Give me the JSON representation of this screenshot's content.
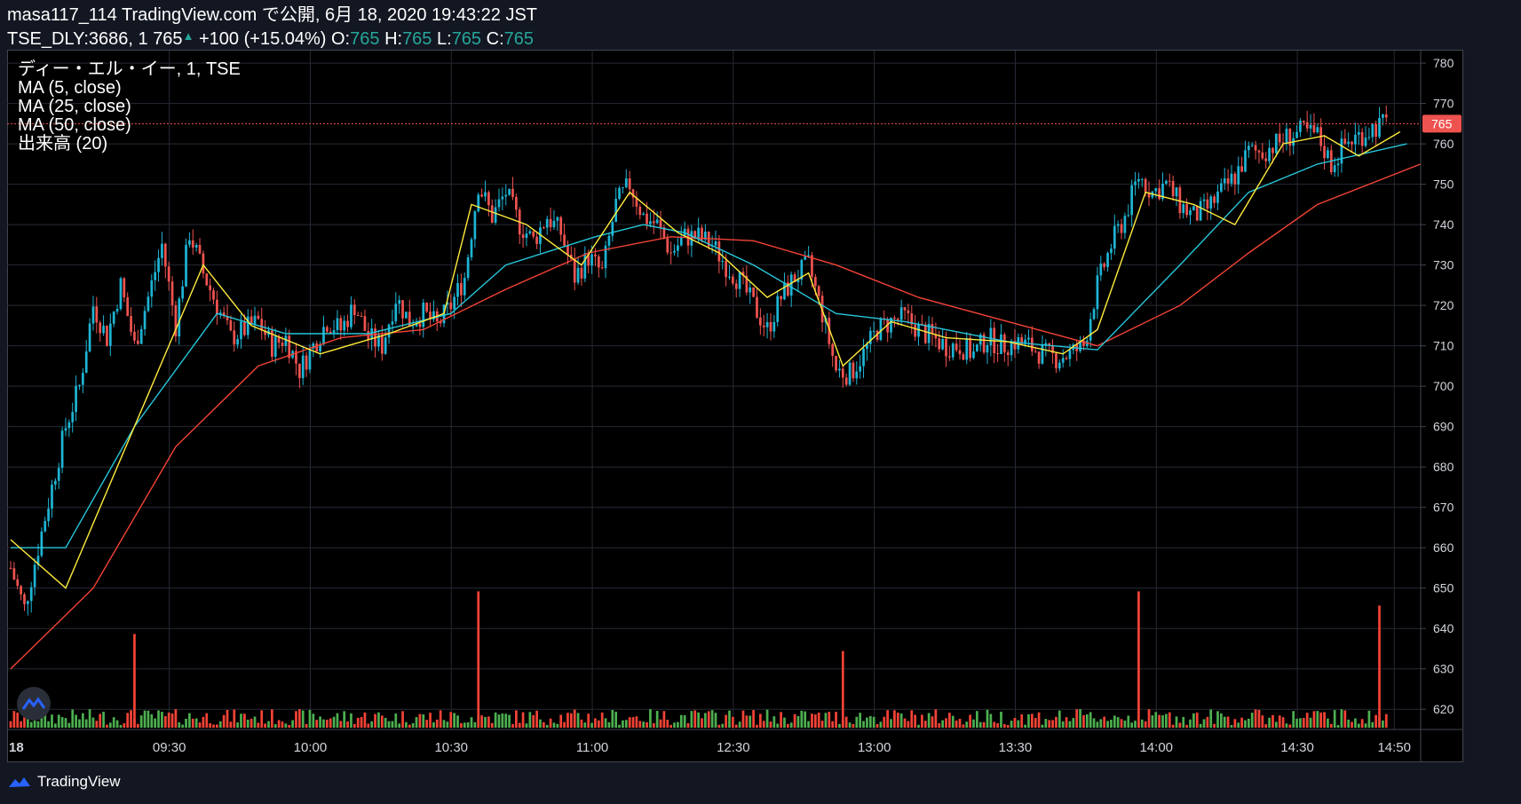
{
  "header": {
    "line1": "masa117_114 TradingView.com で公開, 6月 18, 2020 19:43:22 JST",
    "symbol": "TSE_DLY:3686, 1",
    "price": "765",
    "change": "+100 (+15.04%)",
    "o_label": "O:",
    "o_val": "765",
    "h_label": "H:",
    "h_val": "765",
    "l_label": "L:",
    "l_val": "765",
    "c_label": "C:",
    "c_val": "765"
  },
  "legend": {
    "symbol_line": "ディー・エル・イー, 1, TSE",
    "ma5": "MA (5, close)",
    "ma25": "MA (25, close)",
    "ma50": "MA (50, close)",
    "volume": "出来高 (20)"
  },
  "footer": {
    "brand": "TradingView"
  },
  "colors": {
    "up": "#26a69a",
    "up_candle": "#1eb4d4",
    "down": "#ef5350",
    "ma5": "#ffeb3b",
    "ma25": "#26c6da",
    "ma50": "#f44336",
    "vol_up": "#4caf50",
    "vol_down": "#f44336",
    "price_tag": "#ef5350"
  },
  "chart_data": {
    "type": "candlestick",
    "title": "ディー・エル・イー, 1, TSE",
    "ylim": [
      615,
      782
    ],
    "y_ticks": [
      620,
      630,
      640,
      650,
      660,
      670,
      680,
      690,
      700,
      710,
      720,
      730,
      740,
      750,
      760,
      770,
      780
    ],
    "x_ticks": [
      "18",
      "09:30",
      "10:00",
      "10:30",
      "11:00",
      "12:30",
      "13:00",
      "13:30",
      "14:00",
      "14:30",
      "14:50"
    ],
    "last_price": 765,
    "price_path": [
      [
        0,
        655
      ],
      [
        2,
        645
      ],
      [
        4,
        660
      ],
      [
        6,
        675
      ],
      [
        8,
        690
      ],
      [
        10,
        700
      ],
      [
        12,
        720
      ],
      [
        14,
        712
      ],
      [
        16,
        725
      ],
      [
        18,
        710
      ],
      [
        20,
        722
      ],
      [
        22,
        735
      ],
      [
        24,
        715
      ],
      [
        26,
        738
      ],
      [
        28,
        728
      ],
      [
        30,
        720
      ],
      [
        32,
        712
      ],
      [
        34,
        714
      ],
      [
        36,
        716
      ],
      [
        38,
        710
      ],
      [
        40,
        712
      ],
      [
        42,
        704
      ],
      [
        44,
        710
      ],
      [
        46,
        716
      ],
      [
        48,
        714
      ],
      [
        50,
        720
      ],
      [
        52,
        712
      ],
      [
        54,
        710
      ],
      [
        56,
        722
      ],
      [
        58,
        716
      ],
      [
        60,
        718
      ],
      [
        62,
        715
      ],
      [
        64,
        720
      ],
      [
        66,
        727
      ],
      [
        68,
        750
      ],
      [
        70,
        742
      ],
      [
        72,
        748
      ],
      [
        74,
        740
      ],
      [
        76,
        736
      ],
      [
        78,
        742
      ],
      [
        80,
        738
      ],
      [
        82,
        727
      ],
      [
        84,
        732
      ],
      [
        86,
        728
      ],
      [
        88,
        745
      ],
      [
        90,
        750
      ],
      [
        92,
        742
      ],
      [
        94,
        740
      ],
      [
        96,
        733
      ],
      [
        98,
        737
      ],
      [
        100,
        737
      ],
      [
        102,
        735
      ],
      [
        104,
        730
      ],
      [
        106,
        726
      ],
      [
        108,
        720
      ],
      [
        110,
        714
      ],
      [
        112,
        722
      ],
      [
        114,
        727
      ],
      [
        116,
        730
      ],
      [
        118,
        718
      ],
      [
        120,
        704
      ],
      [
        122,
        703
      ],
      [
        124,
        708
      ],
      [
        126,
        714
      ],
      [
        128,
        716
      ],
      [
        130,
        717
      ],
      [
        132,
        714
      ],
      [
        134,
        712
      ],
      [
        136,
        710
      ],
      [
        138,
        710
      ],
      [
        140,
        708
      ],
      [
        142,
        712
      ],
      [
        144,
        710
      ],
      [
        146,
        711
      ],
      [
        148,
        710
      ],
      [
        150,
        708
      ],
      [
        152,
        707
      ],
      [
        154,
        708
      ],
      [
        156,
        710
      ],
      [
        158,
        725
      ],
      [
        160,
        735
      ],
      [
        162,
        742
      ],
      [
        164,
        752
      ],
      [
        166,
        748
      ],
      [
        168,
        750
      ],
      [
        170,
        745
      ],
      [
        172,
        742
      ],
      [
        174,
        744
      ],
      [
        176,
        748
      ],
      [
        178,
        752
      ],
      [
        180,
        758
      ],
      [
        182,
        758
      ],
      [
        184,
        760
      ],
      [
        186,
        762
      ],
      [
        188,
        763
      ],
      [
        190,
        762
      ],
      [
        192,
        755
      ],
      [
        194,
        760
      ],
      [
        196,
        762
      ],
      [
        198,
        764
      ],
      [
        200,
        765
      ]
    ],
    "ma5": [
      [
        0,
        662
      ],
      [
        8,
        650
      ],
      [
        18,
        690
      ],
      [
        28,
        730
      ],
      [
        35,
        715
      ],
      [
        45,
        708
      ],
      [
        55,
        713
      ],
      [
        63,
        718
      ],
      [
        67,
        745
      ],
      [
        75,
        740
      ],
      [
        83,
        730
      ],
      [
        90,
        748
      ],
      [
        97,
        738
      ],
      [
        103,
        733
      ],
      [
        110,
        722
      ],
      [
        116,
        728
      ],
      [
        121,
        705
      ],
      [
        128,
        716
      ],
      [
        136,
        712
      ],
      [
        145,
        711
      ],
      [
        153,
        708
      ],
      [
        158,
        714
      ],
      [
        165,
        748
      ],
      [
        172,
        745
      ],
      [
        178,
        740
      ],
      [
        185,
        760
      ],
      [
        191,
        762
      ],
      [
        196,
        757
      ],
      [
        202,
        763
      ]
    ],
    "ma25": [
      [
        0,
        660
      ],
      [
        8,
        660
      ],
      [
        18,
        690
      ],
      [
        30,
        718
      ],
      [
        40,
        713
      ],
      [
        52,
        713
      ],
      [
        64,
        718
      ],
      [
        72,
        730
      ],
      [
        85,
        737
      ],
      [
        92,
        740
      ],
      [
        98,
        738
      ],
      [
        108,
        730
      ],
      [
        120,
        718
      ],
      [
        130,
        716
      ],
      [
        145,
        711
      ],
      [
        158,
        709
      ],
      [
        170,
        730
      ],
      [
        180,
        748
      ],
      [
        190,
        755
      ],
      [
        203,
        760
      ]
    ],
    "ma50": [
      [
        0,
        630
      ],
      [
        12,
        650
      ],
      [
        24,
        685
      ],
      [
        36,
        705
      ],
      [
        48,
        712
      ],
      [
        60,
        714
      ],
      [
        72,
        724
      ],
      [
        84,
        733
      ],
      [
        96,
        737
      ],
      [
        108,
        736
      ],
      [
        120,
        730
      ],
      [
        132,
        722
      ],
      [
        145,
        716
      ],
      [
        158,
        710
      ],
      [
        170,
        720
      ],
      [
        180,
        733
      ],
      [
        190,
        745
      ],
      [
        205,
        755
      ]
    ],
    "volume": {
      "approx_peaks": [
        {
          "time": "09:15",
          "height": 0.33
        },
        {
          "time": "10:45",
          "height": 0.48
        },
        {
          "time": "13:05",
          "height": 0.27
        },
        {
          "time": "14:10",
          "height": 0.48
        },
        {
          "time": "14:55",
          "height": 0.43
        }
      ]
    }
  }
}
